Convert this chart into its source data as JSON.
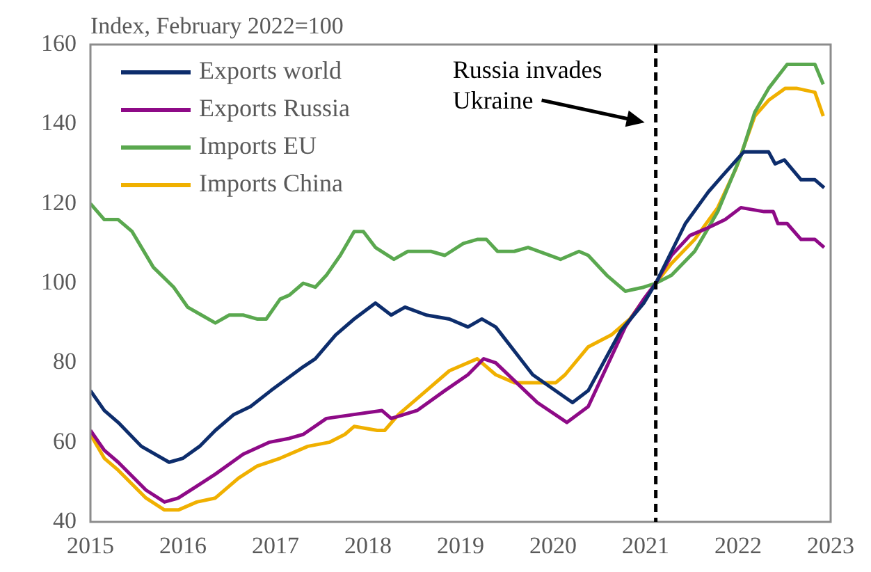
{
  "chart_data": {
    "type": "line",
    "ylabel": "Index, February 2022=100",
    "xlim": [
      2015,
      2023
    ],
    "xticks": [
      2015,
      2016,
      2017,
      2018,
      2019,
      2020,
      2021,
      2022,
      2023
    ],
    "ylim": [
      40,
      160
    ],
    "yticks": [
      40,
      60,
      80,
      100,
      120,
      140,
      160
    ],
    "grid": false,
    "legend": "top left",
    "marker": "none",
    "line_style": "solid",
    "ref_lines": [
      {
        "axis": "x",
        "value": 2021.11,
        "label": "Russia invades Ukraine",
        "color": "#000000",
        "line_style": "dashed"
      }
    ],
    "series": [
      {
        "name": "Exports world",
        "color": "#0d2d6c",
        "x": [
          2015.0,
          2015.15,
          2015.3,
          2015.55,
          2015.85,
          2016.0,
          2016.18,
          2016.35,
          2016.55,
          2016.73,
          2016.95,
          2017.3,
          2017.43,
          2017.65,
          2017.85,
          2018.08,
          2018.25,
          2018.4,
          2018.63,
          2018.88,
          2019.08,
          2019.23,
          2019.38,
          2019.78,
          2020.21,
          2020.38,
          2020.73,
          2020.98,
          2021.11,
          2021.43,
          2021.68,
          2021.83,
          2022.06,
          2022.33,
          2022.4,
          2022.5,
          2022.68,
          2022.83,
          2022.93
        ],
        "values": [
          73,
          68,
          65,
          59,
          55,
          56,
          59,
          63,
          67,
          69,
          73,
          79,
          81,
          87,
          91,
          95,
          92,
          94,
          92,
          91,
          89,
          91,
          89,
          77,
          70,
          73,
          88,
          95,
          100,
          115,
          123,
          127,
          133,
          133,
          130,
          131,
          126,
          126,
          124
        ]
      },
      {
        "name": "Exports Russia",
        "color": "#8e0a87",
        "x": [
          2015.0,
          2015.15,
          2015.3,
          2015.6,
          2015.8,
          2015.95,
          2016.15,
          2016.35,
          2016.65,
          2016.93,
          2017.15,
          2017.3,
          2017.55,
          2017.85,
          2018.15,
          2018.25,
          2018.53,
          2018.83,
          2019.08,
          2019.25,
          2019.38,
          2019.83,
          2020.15,
          2020.38,
          2020.78,
          2020.98,
          2021.11,
          2021.28,
          2021.48,
          2021.68,
          2021.86,
          2022.03,
          2022.28,
          2022.38,
          2022.43,
          2022.53,
          2022.68,
          2022.83,
          2022.93
        ],
        "values": [
          63,
          58,
          55,
          48,
          45,
          46,
          49,
          52,
          57,
          60,
          61,
          62,
          66,
          67,
          68,
          66,
          68,
          73,
          77,
          81,
          80,
          70,
          65,
          69,
          89,
          96,
          100,
          107,
          112,
          114,
          116,
          119,
          118,
          118,
          115,
          115,
          111,
          111,
          109
        ]
      },
      {
        "name": "Imports EU",
        "color": "#5aa84f",
        "x": [
          2015.0,
          2015.15,
          2015.3,
          2015.45,
          2015.68,
          2015.9,
          2016.05,
          2016.2,
          2016.35,
          2016.5,
          2016.65,
          2016.8,
          2016.9,
          2017.05,
          2017.15,
          2017.3,
          2017.43,
          2017.55,
          2017.7,
          2017.85,
          2017.95,
          2018.08,
          2018.28,
          2018.43,
          2018.68,
          2018.83,
          2019.03,
          2019.18,
          2019.28,
          2019.4,
          2019.58,
          2019.73,
          2020.08,
          2020.28,
          2020.38,
          2020.58,
          2020.78,
          2020.98,
          2021.11,
          2021.28,
          2021.53,
          2021.78,
          2022.03,
          2022.18,
          2022.33,
          2022.53,
          2022.68,
          2022.83,
          2022.92
        ],
        "values": [
          120,
          116,
          116,
          113,
          104,
          99,
          94,
          92,
          90,
          92,
          92,
          91,
          91,
          96,
          97,
          100,
          99,
          102,
          107,
          113,
          113,
          109,
          106,
          108,
          108,
          107,
          110,
          111,
          111,
          108,
          108,
          109,
          106,
          108,
          107,
          102,
          98,
          99,
          100,
          102,
          108,
          118,
          132,
          143,
          149,
          155,
          155,
          155,
          150
        ]
      },
      {
        "name": "Imports China",
        "color": "#f0b000",
        "x": [
          2015.0,
          2015.15,
          2015.3,
          2015.6,
          2015.8,
          2015.95,
          2016.15,
          2016.35,
          2016.6,
          2016.8,
          2017.05,
          2017.35,
          2017.58,
          2017.75,
          2017.85,
          2018.1,
          2018.18,
          2018.33,
          2018.58,
          2018.88,
          2019.18,
          2019.38,
          2019.58,
          2019.78,
          2020.03,
          2020.13,
          2020.38,
          2020.63,
          2020.83,
          2021.11,
          2021.28,
          2021.53,
          2021.78,
          2021.98,
          2022.18,
          2022.33,
          2022.51,
          2022.63,
          2022.83,
          2022.92
        ],
        "values": [
          62,
          56,
          53,
          46,
          43,
          43,
          45,
          46,
          51,
          54,
          56,
          59,
          60,
          62,
          64,
          63,
          63,
          67,
          72,
          78,
          81,
          77,
          75,
          75,
          75,
          77,
          84,
          87,
          91,
          100,
          105,
          111,
          119,
          129,
          142,
          146,
          149,
          149,
          148,
          142
        ]
      }
    ]
  }
}
